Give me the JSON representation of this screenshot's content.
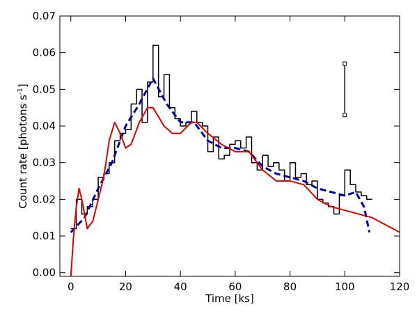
{
  "chart_data": {
    "type": "line",
    "xlabel": "Time [ks]",
    "ylabel": "Count rate [photons s",
    "ylabel_sup": "-1",
    "ylabel_end": "]",
    "xlim": [
      -4,
      120
    ],
    "ylim": [
      -0.001,
      0.07
    ],
    "xticks": [
      0,
      20,
      40,
      60,
      80,
      100,
      120
    ],
    "yticks": [
      {
        "value": 0,
        "label": "0.00"
      },
      0.01,
      0.02,
      0.03,
      0.04,
      0.05,
      0.06,
      0.07
    ],
    "series": [
      {
        "color": "#000000",
        "style": "step",
        "x": [
          0,
          2,
          4,
          6,
          8,
          10,
          12,
          14,
          16,
          18,
          20,
          22,
          24,
          26,
          28,
          30,
          32,
          34,
          36,
          38,
          40,
          42,
          44,
          46,
          48,
          50,
          52,
          54,
          56,
          58,
          60,
          62,
          64,
          66,
          68,
          70,
          72,
          74,
          76,
          78,
          80,
          82,
          84,
          86,
          88,
          90,
          92,
          94,
          96,
          98,
          100,
          102,
          104,
          106,
          108
        ],
        "values": [
          0.012,
          0.02,
          0.016,
          0.018,
          0.02,
          0.026,
          0.027,
          0.03,
          0.036,
          0.038,
          0.039,
          0.046,
          0.05,
          0.041,
          0.052,
          0.062,
          0.048,
          0.054,
          0.045,
          0.042,
          0.04,
          0.041,
          0.044,
          0.041,
          0.04,
          0.033,
          0.037,
          0.031,
          0.032,
          0.035,
          0.036,
          0.034,
          0.037,
          0.03,
          0.028,
          0.032,
          0.029,
          0.03,
          0.028,
          0.025,
          0.03,
          0.026,
          0.027,
          0.024,
          0.025,
          0.02,
          0.019,
          0.018,
          0.016,
          0.021,
          0.028,
          0.024,
          0.022,
          0.021,
          0.02
        ]
      },
      {
        "color": "#0000aa",
        "style": "dashed",
        "x": [
          0,
          5,
          10,
          15,
          20,
          25,
          30,
          35,
          40,
          45,
          50,
          55,
          60,
          65,
          70,
          75,
          80,
          85,
          90,
          95,
          100,
          104,
          107,
          109
        ],
        "values": [
          0.011,
          0.015,
          0.023,
          0.03,
          0.04,
          0.046,
          0.053,
          0.046,
          0.041,
          0.041,
          0.036,
          0.034,
          0.034,
          0.033,
          0.029,
          0.027,
          0.026,
          0.025,
          0.023,
          0.022,
          0.021,
          0.022,
          0.018,
          0.011
        ]
      },
      {
        "color": "#e00000",
        "style": "solid",
        "x": [
          0,
          1,
          2,
          3,
          4,
          6,
          8,
          10,
          12,
          14,
          16,
          18,
          20,
          22,
          25,
          28,
          30,
          34,
          37,
          40,
          44,
          46,
          50,
          55,
          60,
          65,
          70,
          75,
          80,
          85,
          90,
          95,
          100,
          105,
          110,
          115,
          120
        ],
        "values": [
          -0.001,
          0.01,
          0.018,
          0.023,
          0.02,
          0.012,
          0.014,
          0.02,
          0.026,
          0.036,
          0.041,
          0.038,
          0.034,
          0.035,
          0.041,
          0.045,
          0.045,
          0.04,
          0.038,
          0.038,
          0.041,
          0.041,
          0.038,
          0.035,
          0.033,
          0.033,
          0.028,
          0.025,
          0.025,
          0.024,
          0.02,
          0.018,
          0.017,
          0.016,
          0.015,
          0.013,
          0.011
        ]
      }
    ],
    "error_bar": {
      "x": 100,
      "low": 0.043,
      "high": 0.057
    }
  }
}
